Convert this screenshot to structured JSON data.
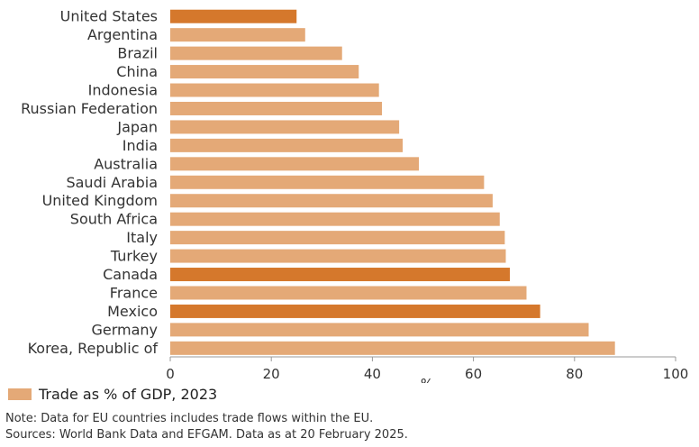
{
  "chart_data": {
    "type": "bar",
    "orientation": "horizontal",
    "categories": [
      "United States",
      "Argentina",
      "Brazil",
      "China",
      "Indonesia",
      "Russian Federation",
      "Japan",
      "India",
      "Australia",
      "Saudi Arabia",
      "United Kingdom",
      "South Africa",
      "Italy",
      "Turkey",
      "Canada",
      "France",
      "Mexico",
      "Germany",
      "Korea, Republic of"
    ],
    "values": [
      25,
      26.7,
      34,
      37.3,
      41.3,
      41.9,
      45.3,
      46,
      49.2,
      62.1,
      63.8,
      65.2,
      66.2,
      66.4,
      67.2,
      70.5,
      73.2,
      82.8,
      88
    ],
    "highlighted": [
      "United States",
      "Canada",
      "Mexico"
    ],
    "xlabel": "%",
    "xlim": [
      0,
      100
    ],
    "xticks": [
      0,
      20,
      40,
      60,
      80,
      100
    ],
    "grid": false,
    "legend_position": "bottom-left",
    "series": [
      {
        "name": "Trade as % of GDP, 2023"
      }
    ]
  },
  "colors": {
    "bar": "#E4A977",
    "bar_highlight": "#D5782C",
    "axis": "#999999"
  },
  "legend": {
    "label": "Trade as % of GDP, 2023"
  },
  "notes": {
    "note": "Note: Data for EU countries includes trade flows within the EU.",
    "sources": "Sources: World Bank Data and EFGAM. Data as at 20 February 2025."
  }
}
